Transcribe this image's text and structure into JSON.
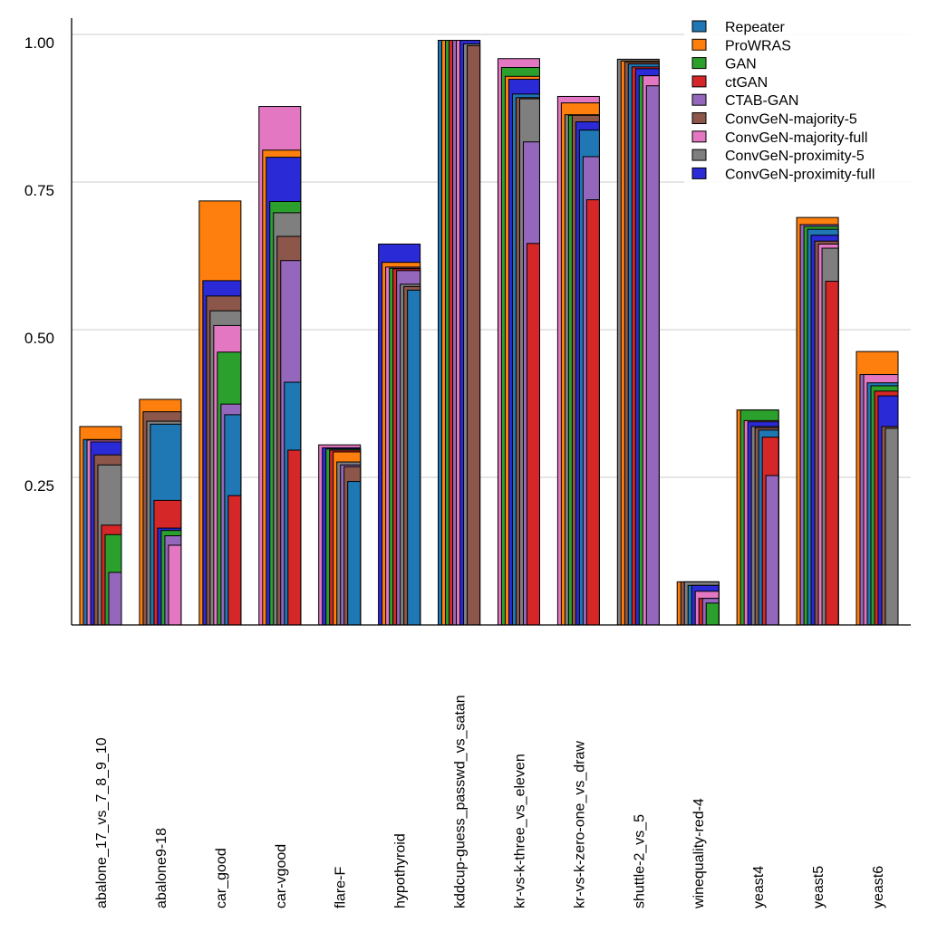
{
  "chart_data": {
    "type": "bar",
    "title": "",
    "xlabel": "",
    "ylabel": "",
    "ylim": [
      0,
      1.0
    ],
    "yticks": [
      0.25,
      0.5,
      0.75,
      1.0
    ],
    "ytick_labels": [
      "0.25",
      "0.50",
      "0.75",
      "1.00"
    ],
    "grid": true,
    "legend_position": "top-right",
    "categories": [
      "abalone_17_vs_7_8_9_10",
      "abalone9-18",
      "car_good",
      "car-vgood",
      "flare-F",
      "hypothyroid",
      "kddcup-guess_passwd_vs_satan",
      "kr-vs-k-three_vs_eleven",
      "kr-vs-k-zero-one_vs_draw",
      "shuttle-2_vs_5",
      "winequality-red-4",
      "yeast4",
      "yeast5",
      "yeast6"
    ],
    "series": [
      {
        "name": "Repeater",
        "color": "#1f77b4",
        "values": [
          0.314,
          0.34,
          0.356,
          0.411,
          0.243,
          0.567,
          0.99,
          0.899,
          0.838,
          0.95,
          0.067,
          0.33,
          0.67,
          0.41
        ]
      },
      {
        "name": "ProWRAS",
        "color": "#ff7f0e",
        "values": [
          0.336,
          0.382,
          0.718,
          0.804,
          0.293,
          0.614,
          0.99,
          0.929,
          0.884,
          0.955,
          0.073,
          0.364,
          0.69,
          0.463
        ]
      },
      {
        "name": "GAN",
        "color": "#2ca02c",
        "values": [
          0.153,
          0.16,
          0.462,
          0.717,
          0.298,
          0.604,
          0.99,
          0.944,
          0.863,
          0.93,
          0.037,
          0.364,
          0.675,
          0.405
        ]
      },
      {
        "name": "ctGAN",
        "color": "#d62728",
        "values": [
          0.169,
          0.211,
          0.219,
          0.296,
          0.296,
          0.603,
          0.99,
          0.646,
          0.72,
          0.945,
          0.045,
          0.318,
          0.582,
          0.396
        ]
      },
      {
        "name": "CTAB-GAN",
        "color": "#9467bd",
        "values": [
          0.089,
          0.151,
          0.374,
          0.617,
          0.271,
          0.6,
          0.99,
          0.818,
          0.793,
          0.913,
          0.045,
          0.253,
          0.678,
          0.424
        ]
      },
      {
        "name": "ConvGeN-majority-5",
        "color": "#8c564b",
        "values": [
          0.288,
          0.361,
          0.557,
          0.658,
          0.268,
          0.573,
          0.981,
          0.893,
          0.863,
          0.953,
          0.073,
          0.334,
          0.65,
          0.336
        ]
      },
      {
        "name": "ConvGeN-majority-full",
        "color": "#e377c2",
        "values": [
          0.313,
          0.135,
          0.507,
          0.878,
          0.305,
          0.606,
          0.99,
          0.959,
          0.895,
          0.93,
          0.057,
          0.346,
          0.645,
          0.424
        ]
      },
      {
        "name": "ConvGeN-proximity-5",
        "color": "#7f7f7f",
        "values": [
          0.271,
          0.345,
          0.532,
          0.698,
          0.276,
          0.577,
          0.984,
          0.891,
          0.864,
          0.958,
          0.073,
          0.336,
          0.638,
          0.333
        ]
      },
      {
        "name": "ConvGeN-proximity-full",
        "color": "#2a2ad6",
        "values": [
          0.31,
          0.164,
          0.583,
          0.792,
          0.3,
          0.645,
          0.99,
          0.924,
          0.852,
          0.942,
          0.067,
          0.344,
          0.66,
          0.388
        ]
      }
    ]
  }
}
